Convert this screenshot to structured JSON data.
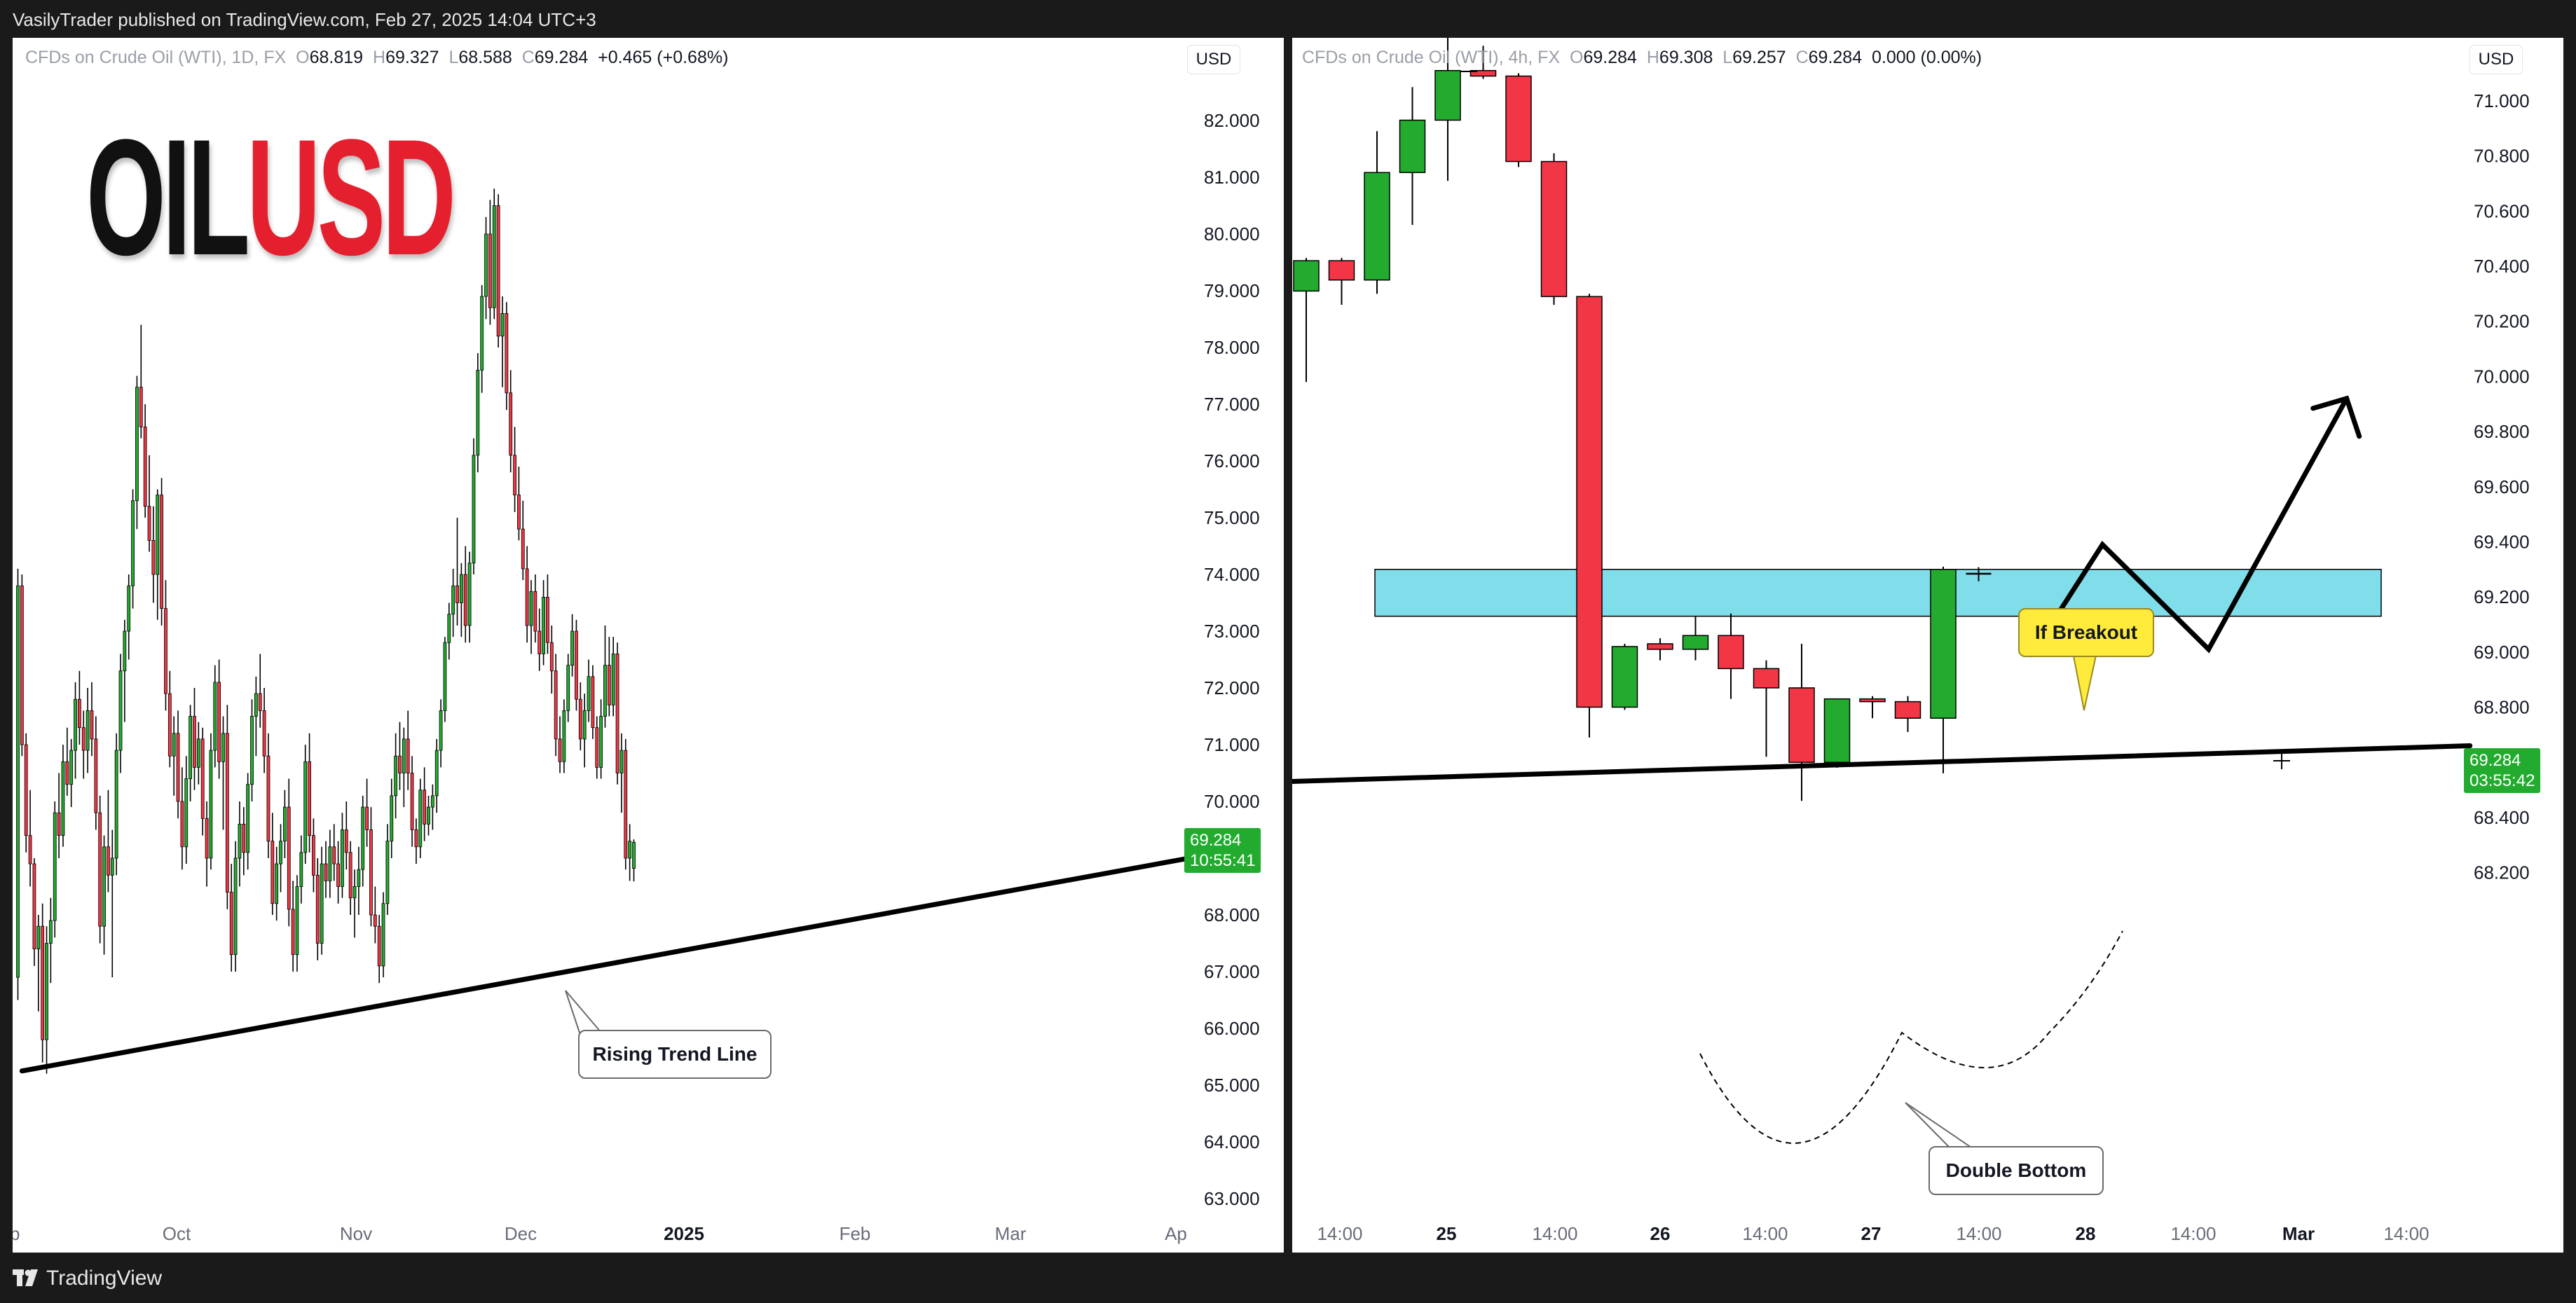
{
  "header": {
    "text": "VasilyTrader published on TradingView.com, Feb 27, 2025 14:04 UTC+3"
  },
  "footer": {
    "brand": "TradingView"
  },
  "colors": {
    "up": "#22ab2e",
    "down": "#f23645",
    "zone": "#80deea",
    "label": "#ffeb3b",
    "accent": "#e5202e"
  },
  "left": {
    "symbol": "CFDs on Crude Oil (WTI), 1D, FX",
    "ohlc": {
      "o_label": "O",
      "o": "68.819",
      "h_label": "H",
      "h": "69.327",
      "l_label": "L",
      "l": "68.588",
      "c_label": "C",
      "c": "69.284",
      "change": "+0.465 (+0.68%)"
    },
    "currency": "USD",
    "title_part1": "OIL",
    "title_part2": "USD",
    "price_tag": {
      "price": "69.284",
      "time": "10:55:41"
    },
    "annotation": "Rising Trend Line"
  },
  "right": {
    "symbol": "CFDs on Crude Oil (WTI), 4h, FX",
    "ohlc": {
      "o_label": "O",
      "o": "69.284",
      "h_label": "H",
      "h": "69.308",
      "l_label": "L",
      "l": "69.257",
      "c_label": "C",
      "c": "69.284",
      "change": "0.000 (0.00%)"
    },
    "currency": "USD",
    "price_tag": {
      "price": "69.284",
      "time": "03:55:42"
    },
    "annotation_breakout": "If Breakout",
    "annotation_bottom": "Double Bottom"
  },
  "chart_data": [
    {
      "type": "candlestick",
      "title": "CFDs on Crude Oil (WTI), 1D, FX",
      "x_ticks": [
        "ep",
        "Oct",
        "Nov",
        "Dec",
        "2025",
        "Feb",
        "Mar",
        "Ap"
      ],
      "y_ticks": [
        "82.000",
        "81.000",
        "80.000",
        "79.000",
        "78.000",
        "77.000",
        "76.000",
        "75.000",
        "74.000",
        "73.000",
        "72.000",
        "71.000",
        "70.000",
        "69.000",
        "68.000",
        "67.000",
        "66.000",
        "65.000",
        "64.000",
        "63.000"
      ],
      "ylim": [
        62.5,
        83.0
      ],
      "last_price": 69.284,
      "trend_line": {
        "label": "Rising Trend Line",
        "from": [
          1,
          65.25
        ],
        "to": [
          175,
          68.95
        ]
      },
      "candles": [
        [
          66.9,
          74.1,
          66.5,
          73.8
        ],
        [
          73.8,
          74.0,
          70.8,
          71.0
        ],
        [
          71.0,
          71.2,
          69.1,
          69.4
        ],
        [
          69.4,
          70.2,
          68.5,
          68.9
        ],
        [
          68.9,
          69.0,
          67.1,
          67.4
        ],
        [
          67.4,
          68.0,
          66.3,
          67.8
        ],
        [
          67.8,
          68.2,
          65.4,
          65.8
        ],
        [
          65.8,
          67.8,
          65.2,
          67.5
        ],
        [
          67.5,
          68.3,
          66.8,
          67.9
        ],
        [
          67.9,
          70.0,
          67.6,
          69.8
        ],
        [
          69.8,
          70.5,
          69.0,
          69.4
        ],
        [
          69.4,
          71.0,
          69.2,
          70.7
        ],
        [
          70.7,
          71.3,
          70.1,
          70.3
        ],
        [
          70.3,
          71.1,
          69.9,
          70.9
        ],
        [
          70.9,
          72.1,
          70.4,
          71.8
        ],
        [
          71.8,
          72.3,
          71.0,
          71.3
        ],
        [
          71.3,
          71.6,
          70.4,
          70.9
        ],
        [
          70.9,
          72.0,
          70.5,
          71.6
        ],
        [
          71.6,
          72.1,
          70.8,
          71.1
        ],
        [
          71.1,
          71.5,
          69.5,
          69.8
        ],
        [
          69.8,
          70.1,
          67.5,
          67.8
        ],
        [
          67.8,
          69.4,
          67.3,
          69.2
        ],
        [
          69.2,
          70.2,
          68.4,
          68.7
        ],
        [
          68.7,
          69.5,
          66.9,
          69.0
        ],
        [
          69.0,
          71.2,
          68.7,
          70.9
        ],
        [
          70.9,
          72.6,
          70.5,
          72.3
        ],
        [
          72.3,
          73.2,
          71.4,
          73.0
        ],
        [
          73.0,
          74.0,
          72.5,
          73.8
        ],
        [
          73.8,
          75.5,
          73.4,
          75.3
        ],
        [
          75.3,
          77.5,
          74.8,
          77.3
        ],
        [
          77.3,
          78.4,
          76.4,
          76.6
        ],
        [
          76.6,
          77.0,
          75.0,
          75.2
        ],
        [
          75.2,
          76.1,
          74.4,
          74.6
        ],
        [
          74.6,
          75.2,
          73.5,
          74.0
        ],
        [
          74.0,
          75.5,
          73.2,
          75.4
        ],
        [
          75.4,
          75.7,
          73.1,
          73.4
        ],
        [
          73.4,
          73.9,
          71.6,
          71.9
        ],
        [
          71.9,
          72.3,
          70.6,
          70.8
        ],
        [
          70.8,
          71.5,
          70.1,
          71.2
        ],
        [
          71.2,
          71.6,
          69.7,
          70.0
        ],
        [
          70.0,
          70.6,
          68.8,
          69.2
        ],
        [
          69.2,
          70.8,
          68.9,
          70.4
        ],
        [
          70.4,
          71.7,
          70.0,
          71.5
        ],
        [
          71.5,
          72.0,
          70.2,
          70.6
        ],
        [
          70.6,
          71.4,
          70.3,
          71.1
        ],
        [
          71.1,
          71.3,
          69.4,
          69.7
        ],
        [
          69.7,
          70.0,
          68.5,
          69.0
        ],
        [
          69.0,
          71.2,
          68.8,
          70.9
        ],
        [
          70.9,
          72.4,
          70.6,
          72.1
        ],
        [
          72.1,
          72.5,
          70.4,
          70.7
        ],
        [
          70.7,
          71.5,
          69.5,
          71.2
        ],
        [
          71.2,
          71.7,
          68.1,
          68.4
        ],
        [
          68.4,
          68.9,
          67.0,
          67.3
        ],
        [
          67.3,
          69.3,
          67.0,
          69.0
        ],
        [
          69.0,
          70.0,
          68.5,
          69.6
        ],
        [
          69.6,
          69.9,
          68.7,
          69.1
        ],
        [
          69.1,
          70.5,
          68.8,
          70.3
        ],
        [
          70.3,
          71.8,
          70.0,
          71.5
        ],
        [
          71.5,
          72.2,
          70.8,
          71.9
        ],
        [
          71.9,
          72.6,
          71.3,
          71.6
        ],
        [
          71.6,
          72.0,
          70.5,
          70.8
        ],
        [
          70.8,
          71.2,
          69.0,
          69.3
        ],
        [
          69.3,
          69.8,
          68.0,
          68.2
        ],
        [
          68.2,
          69.2,
          67.9,
          68.9
        ],
        [
          68.9,
          69.6,
          68.4,
          69.3
        ],
        [
          69.3,
          70.2,
          69.0,
          69.9
        ],
        [
          69.9,
          70.4,
          67.8,
          68.1
        ],
        [
          68.1,
          68.6,
          67.0,
          67.3
        ],
        [
          67.3,
          68.7,
          67.0,
          68.5
        ],
        [
          68.5,
          69.4,
          68.2,
          69.1
        ],
        [
          69.1,
          71.0,
          68.9,
          70.7
        ],
        [
          70.7,
          71.2,
          69.1,
          69.4
        ],
        [
          69.4,
          69.7,
          68.4,
          68.7
        ],
        [
          68.7,
          69.0,
          67.2,
          67.5
        ],
        [
          67.5,
          69.2,
          67.3,
          68.9
        ],
        [
          68.9,
          69.3,
          68.3,
          68.6
        ],
        [
          68.6,
          69.5,
          68.3,
          69.2
        ],
        [
          69.2,
          69.6,
          68.6,
          68.9
        ],
        [
          68.9,
          69.3,
          68.2,
          68.5
        ],
        [
          68.5,
          69.8,
          68.3,
          69.5
        ],
        [
          69.5,
          70.0,
          68.8,
          69.1
        ],
        [
          69.1,
          69.3,
          68.0,
          68.3
        ],
        [
          68.3,
          68.8,
          67.6,
          68.5
        ],
        [
          68.5,
          69.2,
          68.0,
          68.8
        ],
        [
          68.8,
          70.1,
          68.5,
          69.9
        ],
        [
          69.9,
          70.4,
          69.2,
          69.5
        ],
        [
          69.5,
          69.9,
          67.8,
          68.0
        ],
        [
          68.0,
          68.5,
          67.5,
          67.8
        ],
        [
          67.8,
          68.0,
          66.8,
          67.1
        ],
        [
          67.1,
          68.4,
          66.9,
          68.2
        ],
        [
          68.2,
          69.6,
          68.0,
          69.3
        ],
        [
          69.3,
          70.4,
          69.0,
          70.1
        ],
        [
          70.1,
          71.2,
          69.7,
          70.8
        ],
        [
          70.8,
          71.4,
          70.2,
          70.5
        ],
        [
          70.5,
          71.3,
          69.9,
          71.1
        ],
        [
          71.1,
          71.6,
          70.2,
          70.5
        ],
        [
          70.5,
          70.8,
          69.2,
          69.5
        ],
        [
          69.5,
          69.7,
          68.9,
          69.2
        ],
        [
          69.2,
          70.4,
          69.0,
          70.2
        ],
        [
          70.2,
          70.6,
          69.3,
          69.6
        ],
        [
          69.6,
          70.1,
          69.4,
          69.9
        ],
        [
          69.9,
          70.3,
          69.5,
          70.1
        ],
        [
          70.1,
          71.1,
          69.8,
          70.9
        ],
        [
          70.9,
          71.8,
          70.6,
          71.6
        ],
        [
          71.6,
          72.9,
          71.4,
          72.8
        ],
        [
          72.8,
          73.5,
          72.5,
          73.3
        ],
        [
          73.3,
          74.1,
          72.9,
          73.8
        ],
        [
          73.8,
          75.0,
          73.1,
          73.5
        ],
        [
          73.5,
          74.2,
          72.9,
          74.0
        ],
        [
          74.0,
          74.5,
          72.8,
          73.1
        ],
        [
          73.1,
          74.4,
          72.8,
          74.2
        ],
        [
          74.2,
          76.4,
          74.0,
          76.1
        ],
        [
          76.1,
          77.9,
          75.8,
          77.6
        ],
        [
          77.6,
          79.1,
          77.2,
          78.9
        ],
        [
          78.9,
          80.3,
          78.5,
          80.0
        ],
        [
          80.0,
          80.6,
          78.4,
          78.7
        ],
        [
          78.7,
          80.8,
          78.5,
          80.5
        ],
        [
          80.5,
          80.7,
          78.0,
          78.2
        ],
        [
          78.2,
          78.9,
          77.3,
          78.6
        ],
        [
          78.6,
          78.8,
          76.9,
          77.2
        ],
        [
          77.2,
          77.6,
          75.8,
          76.1
        ],
        [
          76.1,
          76.6,
          75.1,
          75.4
        ],
        [
          75.4,
          75.9,
          74.6,
          74.8
        ],
        [
          74.8,
          75.3,
          73.9,
          74.1
        ],
        [
          74.1,
          74.5,
          72.8,
          73.1
        ],
        [
          73.1,
          73.9,
          72.6,
          73.7
        ],
        [
          73.7,
          74.0,
          72.8,
          73.0
        ],
        [
          73.0,
          73.4,
          72.3,
          72.6
        ],
        [
          72.6,
          73.9,
          72.4,
          73.6
        ],
        [
          73.6,
          74.0,
          72.6,
          72.8
        ],
        [
          72.8,
          73.1,
          71.9,
          72.3
        ],
        [
          72.3,
          72.6,
          70.8,
          71.1
        ],
        [
          71.1,
          71.5,
          70.5,
          70.7
        ],
        [
          70.7,
          71.8,
          70.5,
          71.6
        ],
        [
          71.6,
          72.6,
          71.4,
          72.4
        ],
        [
          72.4,
          73.3,
          72.2,
          73.0
        ],
        [
          73.0,
          73.2,
          71.6,
          71.8
        ],
        [
          71.8,
          72.1,
          70.9,
          71.1
        ],
        [
          71.1,
          71.9,
          70.6,
          71.6
        ],
        [
          71.6,
          72.5,
          71.4,
          72.2
        ],
        [
          72.2,
          72.4,
          71.1,
          71.3
        ],
        [
          71.3,
          71.5,
          70.4,
          70.6
        ],
        [
          70.6,
          71.8,
          70.4,
          71.5
        ],
        [
          71.5,
          73.1,
          71.3,
          72.4
        ],
        [
          72.4,
          72.9,
          71.5,
          71.7
        ],
        [
          71.7,
          72.9,
          71.5,
          72.6
        ],
        [
          72.6,
          72.8,
          70.3,
          70.5
        ],
        [
          70.5,
          71.2,
          69.8,
          70.9
        ],
        [
          70.9,
          71.1,
          68.8,
          69.0
        ],
        [
          69.0,
          69.6,
          68.6,
          69.3
        ],
        [
          68.82,
          69.33,
          68.59,
          69.28
        ]
      ]
    },
    {
      "type": "candlestick",
      "title": "CFDs on Crude Oil (WTI), 4h, FX",
      "x_ticks": [
        "14:00",
        "25",
        "14:00",
        "26",
        "14:00",
        "27",
        "14:00",
        "28",
        "14:00",
        "Mar",
        "14:00"
      ],
      "y_ticks": [
        "71.000",
        "70.800",
        "70.600",
        "70.400",
        "70.200",
        "70.000",
        "69.800",
        "69.600",
        "69.400",
        "69.200",
        "69.000",
        "68.800",
        "68.600",
        "68.400",
        "68.200"
      ],
      "ylim": [
        68.1,
        71.15
      ],
      "last_price": 69.284,
      "resistance_zone": [
        69.13,
        69.3
      ],
      "trend_line": {
        "from": [
          -0.5,
          68.53
        ],
        "to": [
          31.5,
          68.66
        ]
      },
      "projection_path": [
        [
          20.5,
          68.99
        ],
        [
          22.5,
          69.39
        ],
        [
          25.5,
          69.01
        ],
        [
          29.4,
          69.92
        ]
      ],
      "candles": [
        [
          70.31,
          70.43,
          69.98,
          70.42
        ],
        [
          70.42,
          70.43,
          70.26,
          70.35
        ],
        [
          70.35,
          70.89,
          70.3,
          70.74
        ],
        [
          70.74,
          71.05,
          70.55,
          70.93
        ],
        [
          70.93,
          71.4,
          70.71,
          71.11
        ],
        [
          71.11,
          71.2,
          71.08,
          71.09
        ],
        [
          71.09,
          71.1,
          70.76,
          70.78
        ],
        [
          70.78,
          70.81,
          70.26,
          70.29
        ],
        [
          70.29,
          70.3,
          68.69,
          68.8
        ],
        [
          68.8,
          69.03,
          68.79,
          69.02
        ],
        [
          69.03,
          69.05,
          68.97,
          69.01
        ],
        [
          69.01,
          69.13,
          68.97,
          69.06
        ],
        [
          69.06,
          69.14,
          68.83,
          68.94
        ],
        [
          68.94,
          68.97,
          68.62,
          68.87
        ],
        [
          68.87,
          69.03,
          68.46,
          68.6
        ],
        [
          68.6,
          68.83,
          68.58,
          68.83
        ],
        [
          68.83,
          68.84,
          68.76,
          68.82
        ],
        [
          68.82,
          68.84,
          68.71,
          68.76
        ],
        [
          68.76,
          69.31,
          68.56,
          69.3
        ],
        [
          69.284,
          69.308,
          69.257,
          69.284
        ]
      ]
    }
  ]
}
